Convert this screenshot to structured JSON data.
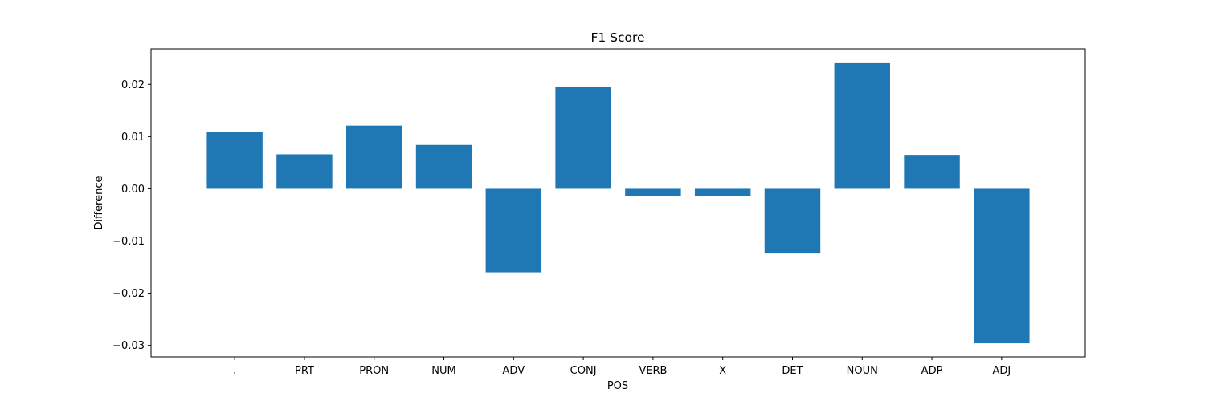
{
  "chart_data": {
    "type": "bar",
    "title": "F1 Score",
    "xlabel": "POS",
    "ylabel": "Difference",
    "categories": [
      ".",
      "PRT",
      "PRON",
      "NUM",
      "ADV",
      "CONJ",
      "VERB",
      "X",
      "DET",
      "NOUN",
      "ADP",
      "ADJ"
    ],
    "values": [
      0.0109,
      0.0066,
      0.0121,
      0.0084,
      -0.016,
      0.0195,
      -0.0014,
      -0.0014,
      -0.0124,
      0.0242,
      0.0065,
      -0.0296
    ],
    "ylim": [
      -0.0322,
      0.0268
    ],
    "yticks": [
      -0.03,
      -0.02,
      -0.01,
      0.0,
      0.01,
      0.02
    ],
    "ytick_labels": [
      "−0.03",
      "−0.02",
      "−0.01",
      "0.00",
      "0.01",
      "0.02"
    ],
    "grid": false,
    "bar_color": "#1f77b4"
  }
}
